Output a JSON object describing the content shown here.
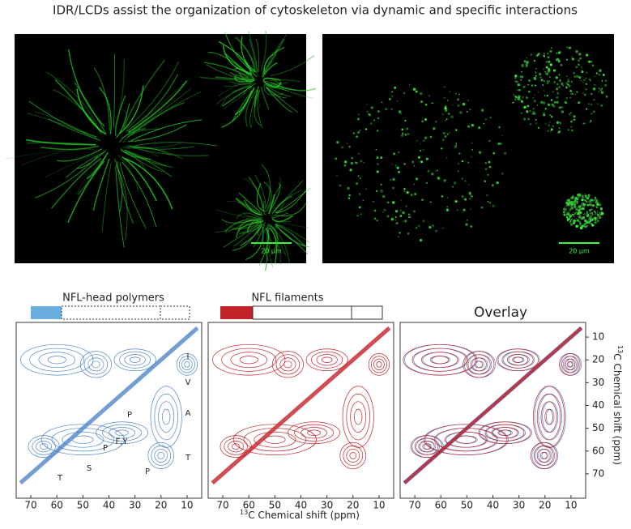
{
  "title": "IDR/LCDs assist the organization of cytoskeleton via dynamic and specific interactions",
  "images": [
    {
      "scale_bar": "20 µm"
    },
    {
      "scale_bar": "20 µm"
    }
  ],
  "panels": [
    {
      "label": "NFL-head polymers"
    },
    {
      "label": "NFL filaments"
    },
    {
      "label": "Overlay"
    }
  ],
  "x_axis": {
    "label_sup": "13",
    "label": "C Chemical shift (ppm)",
    "ticks": [
      70,
      60,
      50,
      40,
      30,
      20,
      10
    ]
  },
  "y_axis": {
    "label_sup": "13",
    "label": "C Chemical shift (ppm)",
    "ticks": [
      10,
      20,
      30,
      40,
      50,
      60,
      70
    ]
  },
  "peak_labels": [
    "I",
    "V",
    "A",
    "P",
    "T",
    "P",
    "F,Y",
    "P",
    "S",
    "T"
  ]
}
